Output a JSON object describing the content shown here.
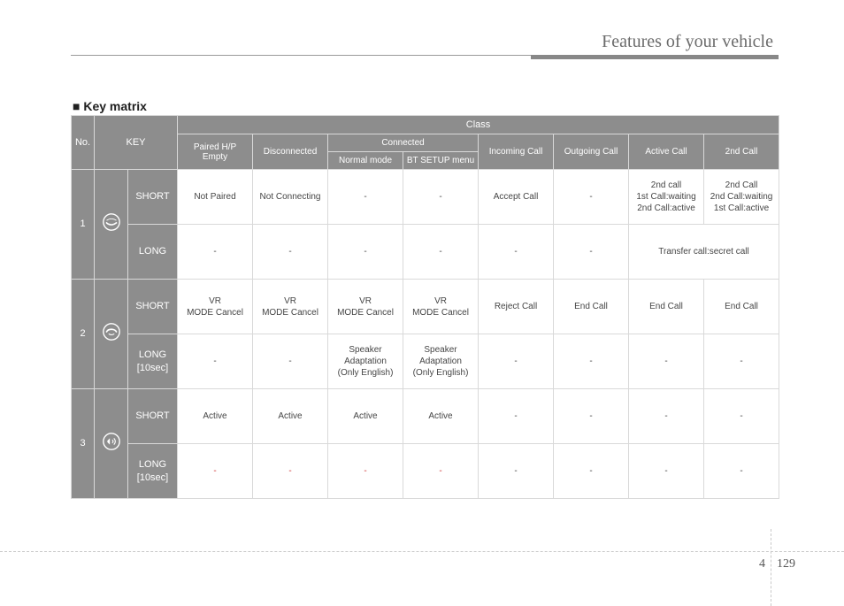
{
  "chapter": {
    "title": "Features of your vehicle"
  },
  "section": {
    "title_prefix": "■ ",
    "title": "Key matrix"
  },
  "footer": {
    "section_no": "4",
    "page_no": "129"
  },
  "colors": {
    "header_bg": "#8d8d8d",
    "header_fg": "#ffffff",
    "cell_fg": "#454545",
    "red_fg": "#cc3333",
    "grid": "#d9d9d9",
    "chapter_fg": "#6b6b6b",
    "band_dark": "#888888",
    "band_light": "#9a9a9a",
    "dash": "#c9c9c9"
  },
  "header": {
    "no": "No.",
    "key": "KEY",
    "class": "Class",
    "paired_hp_empty": "Paired H/P\nEmpty",
    "disconnected": "Disconnected",
    "connected": "Connected",
    "normal_mode": "Normal mode",
    "bt_setup_menu": "BT SETUP menu",
    "incoming_call": "Incoming Call",
    "outgoing_call": "Outgoing Call",
    "active_call": "Active Call",
    "second_call": "2nd Call"
  },
  "press": {
    "short": "SHORT",
    "long": "LONG",
    "long_10s": "LONG\n[10sec]"
  },
  "cells": {
    "dash": "-",
    "not_paired": "Not Paired",
    "not_connecting": "Not Connecting",
    "accept_call": "Accept Call",
    "second_active": "2nd call\n1st Call:waiting\n2nd Call:active",
    "second_active_b": "2nd Call\n2nd Call:waiting\n1st Call:active",
    "transfer_secret": "Transfer call:secret call",
    "vr_mode_cancel": "VR\nMODE Cancel",
    "reject_call": "Reject Call",
    "end_call": "End Call",
    "speaker_adapt": "Speaker\nAdaptation\n(Only English)",
    "active": "Active"
  },
  "row_nums": {
    "r1": "1",
    "r2": "2",
    "r3": "3"
  },
  "icons": {
    "phone": "phone-icon",
    "voice": "voice-icon",
    "speaker": "speaker-icon"
  }
}
